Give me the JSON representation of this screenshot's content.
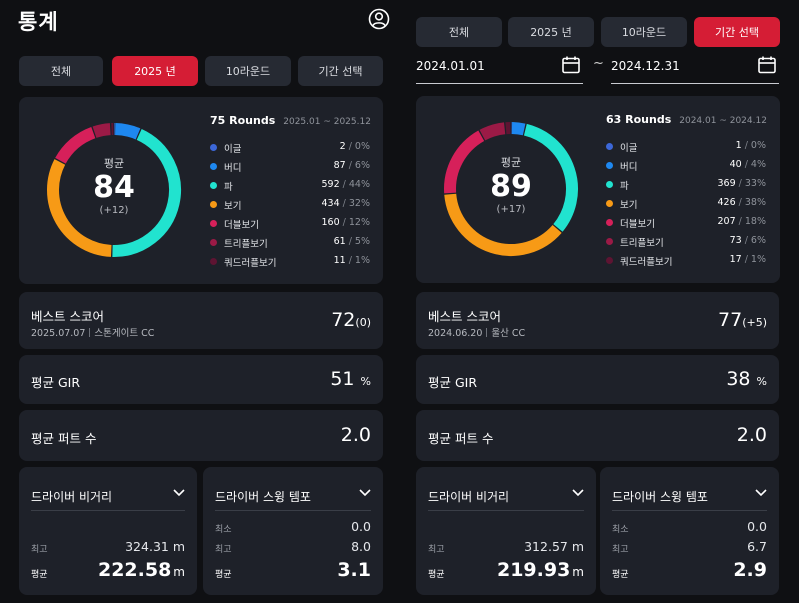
{
  "left": {
    "title": "통계",
    "tabs": [
      {
        "label": "전체",
        "active": false
      },
      {
        "label": "2025 년",
        "active": true
      },
      {
        "label": "10라운드",
        "active": false
      },
      {
        "label": "기간 선택",
        "active": false
      }
    ],
    "summary": {
      "rounds": "75 Rounds",
      "range": "2025.01 ~ 2025.12",
      "avg_label": "평균",
      "avg_score": "84",
      "avg_diff": "(+12)",
      "legend": [
        {
          "name": "이글",
          "count": "2",
          "pct": "0%",
          "value": 2,
          "color": "#3c67d8"
        },
        {
          "name": "버디",
          "count": "87",
          "pct": "6%",
          "value": 87,
          "color": "#1e88f0"
        },
        {
          "name": "파",
          "count": "592",
          "pct": "44%",
          "value": 592,
          "color": "#21e3cf"
        },
        {
          "name": "보기",
          "count": "434",
          "pct": "32%",
          "value": 434,
          "color": "#f79a16"
        },
        {
          "name": "더블보기",
          "count": "160",
          "pct": "12%",
          "value": 160,
          "color": "#d6205a"
        },
        {
          "name": "트리플보기",
          "count": "61",
          "pct": "5%",
          "value": 61,
          "color": "#9b1a46"
        },
        {
          "name": "쿼드러플보기",
          "count": "11",
          "pct": "1%",
          "value": 11,
          "color": "#5e1432"
        }
      ]
    },
    "best": {
      "label": "베스트 스코어",
      "date": "2025.07.07",
      "course": "스톤게이트 CC",
      "score": "72",
      "diff": "(0)"
    },
    "gir": {
      "label": "평균 GIR",
      "value": "51",
      "unit": "%"
    },
    "putts": {
      "label": "평균 퍼트 수",
      "value": "2.0"
    },
    "driver": {
      "label": "드라이버 비거리",
      "max_label": "최고",
      "max_value": "324.31 m",
      "avg_label": "평균",
      "avg_value": "222.58",
      "avg_unit": "m"
    },
    "tempo": {
      "label": "드라이버 스윙 템포",
      "min_label": "최소",
      "min_value": "0.0",
      "max_label": "최고",
      "max_value": "8.0",
      "avg_label": "평균",
      "avg_value": "3.1"
    }
  },
  "right": {
    "tabs": [
      {
        "label": "전체",
        "active": false
      },
      {
        "label": "2025 년",
        "active": false
      },
      {
        "label": "10라운드",
        "active": false
      },
      {
        "label": "기간 선택",
        "active": true
      }
    ],
    "date_from": "2024.01.01",
    "tilde": "~",
    "date_to": "2024.12.31",
    "summary": {
      "rounds": "63 Rounds",
      "range": "2024.01 ~ 2024.12",
      "avg_label": "평균",
      "avg_score": "89",
      "avg_diff": "(+17)",
      "legend": [
        {
          "name": "이글",
          "count": "1",
          "pct": "0%",
          "value": 1,
          "color": "#3c67d8"
        },
        {
          "name": "버디",
          "count": "40",
          "pct": "4%",
          "value": 40,
          "color": "#1e88f0"
        },
        {
          "name": "파",
          "count": "369",
          "pct": "33%",
          "value": 369,
          "color": "#21e3cf"
        },
        {
          "name": "보기",
          "count": "426",
          "pct": "38%",
          "value": 426,
          "color": "#f79a16"
        },
        {
          "name": "더블보기",
          "count": "207",
          "pct": "18%",
          "value": 207,
          "color": "#d6205a"
        },
        {
          "name": "트리플보기",
          "count": "73",
          "pct": "6%",
          "value": 73,
          "color": "#9b1a46"
        },
        {
          "name": "쿼드러플보기",
          "count": "17",
          "pct": "1%",
          "value": 17,
          "color": "#5e1432"
        }
      ]
    },
    "best": {
      "label": "베스트 스코어",
      "date": "2024.06.20",
      "course": "울산 CC",
      "score": "77",
      "diff": "(+5)"
    },
    "gir": {
      "label": "평균 GIR",
      "value": "38",
      "unit": "%"
    },
    "putts": {
      "label": "평균 퍼트 수",
      "value": "2.0"
    },
    "driver": {
      "label": "드라이버 비거리",
      "max_label": "최고",
      "max_value": "312.57 m",
      "avg_label": "평균",
      "avg_value": "219.93",
      "avg_unit": "m"
    },
    "tempo": {
      "label": "드라이버 스윙 템포",
      "min_label": "최소",
      "min_value": "0.0",
      "max_label": "최고",
      "max_value": "6.7",
      "avg_label": "평균",
      "avg_value": "2.9"
    }
  }
}
